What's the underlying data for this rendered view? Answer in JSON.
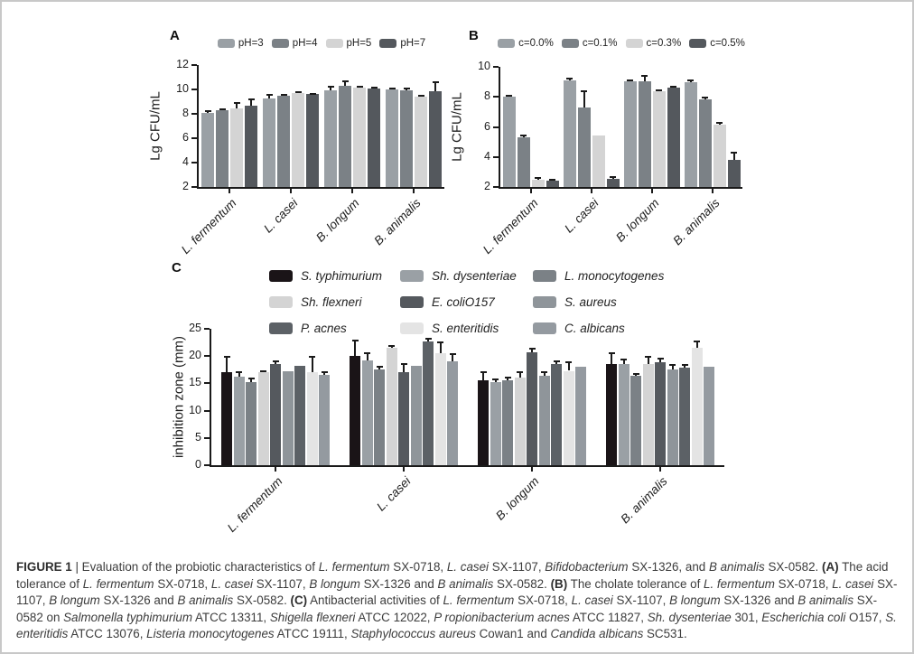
{
  "figure": {
    "caption_segments": [
      {
        "t": "FIGURE 1",
        "b": true
      },
      {
        "t": " | Evaluation of the probiotic characteristics of "
      },
      {
        "t": "L. fermentum",
        "i": true
      },
      {
        "t": " SX-0718, "
      },
      {
        "t": "L. casei",
        "i": true
      },
      {
        "t": " SX-1107, "
      },
      {
        "t": "Bifidobacterium",
        "i": true
      },
      {
        "t": " SX-1326, and "
      },
      {
        "t": "B animalis",
        "i": true
      },
      {
        "t": " SX-0582. "
      },
      {
        "t": "(A)",
        "b": true
      },
      {
        "t": " The acid tolerance of "
      },
      {
        "t": "L. fermentum",
        "i": true
      },
      {
        "t": " SX-0718, "
      },
      {
        "t": "L. casei",
        "i": true
      },
      {
        "t": " SX-1107, "
      },
      {
        "t": "B longum",
        "i": true
      },
      {
        "t": " SX-1326 and "
      },
      {
        "t": "B animalis",
        "i": true
      },
      {
        "t": " SX-0582. "
      },
      {
        "t": "(B)",
        "b": true
      },
      {
        "t": " The cholate tolerance of "
      },
      {
        "t": "L. fermentum",
        "i": true
      },
      {
        "t": " SX-0718, "
      },
      {
        "t": "L. casei",
        "i": true
      },
      {
        "t": " SX-1107, "
      },
      {
        "t": "B longum",
        "i": true
      },
      {
        "t": " SX-1326 and "
      },
      {
        "t": "B animalis",
        "i": true
      },
      {
        "t": " SX-0582. "
      },
      {
        "t": "(C)",
        "b": true
      },
      {
        "t": " Antibacterial activities of "
      },
      {
        "t": "L. fermentum",
        "i": true
      },
      {
        "t": " SX-0718, "
      },
      {
        "t": "L. casei",
        "i": true
      },
      {
        "t": " SX-1107, "
      },
      {
        "t": "B longum",
        "i": true
      },
      {
        "t": " SX-1326 and "
      },
      {
        "t": "B animalis",
        "i": true
      },
      {
        "t": " SX-0582 on "
      },
      {
        "t": "Salmonella typhimurium",
        "i": true
      },
      {
        "t": " ATCC 13311, "
      },
      {
        "t": "Shigella flexneri",
        "i": true
      },
      {
        "t": " ATCC 12022, "
      },
      {
        "t": "P ropionibacterium acnes",
        "i": true
      },
      {
        "t": " ATCC 11827, "
      },
      {
        "t": "Sh. dysenteriae",
        "i": true
      },
      {
        "t": " 301, "
      },
      {
        "t": "Escherichia coli",
        "i": true
      },
      {
        "t": " O157, "
      },
      {
        "t": "S. enteritidis",
        "i": true
      },
      {
        "t": " ATCC 13076, "
      },
      {
        "t": "Listeria monocytogenes",
        "i": true
      },
      {
        "t": " ATCC 19111, "
      },
      {
        "t": "Staphylococcus aureus",
        "i": true
      },
      {
        "t": " Cowan1 and "
      },
      {
        "t": "Candida albicans",
        "i": true
      },
      {
        "t": " SC531."
      }
    ]
  },
  "chart_data": [
    {
      "id": "A",
      "label": "A",
      "type": "bar",
      "title": "Acid tolerance",
      "xlabel": "",
      "ylabel": "Lg CFU/mL",
      "ylim": [
        2,
        12
      ],
      "yticks": [
        2,
        4,
        6,
        8,
        10,
        12
      ],
      "grid": false,
      "legend_position": "top",
      "legend_italic": false,
      "categories": [
        "L. fermentum",
        "L. casei",
        "B. longum",
        "B. animalis"
      ],
      "series": [
        {
          "name": "pH=3",
          "color": "#9aa0a5",
          "values": [
            8.1,
            9.25,
            9.9,
            10.0
          ],
          "errors": [
            0.1,
            0.3,
            0.35,
            0.1
          ]
        },
        {
          "name": "pH=4",
          "color": "#7b8186",
          "values": [
            8.3,
            9.45,
            10.3,
            9.9
          ],
          "errors": [
            0.1,
            0.1,
            0.35,
            0.15
          ]
        },
        {
          "name": "pH=5",
          "color": "#d4d4d4",
          "values": [
            8.45,
            9.7,
            10.15,
            9.4
          ],
          "errors": [
            0.45,
            0.05,
            0.1,
            0.1
          ]
        },
        {
          "name": "pH=7",
          "color": "#54585d",
          "values": [
            8.7,
            9.6,
            10.05,
            9.85
          ],
          "errors": [
            0.5,
            0.05,
            0.1,
            0.75
          ]
        }
      ]
    },
    {
      "id": "B",
      "label": "B",
      "type": "bar",
      "title": "Cholate tolerance",
      "xlabel": "",
      "ylabel": "Lg CFU/mL",
      "ylim": [
        2,
        10
      ],
      "yticks": [
        2,
        4,
        6,
        8,
        10
      ],
      "grid": false,
      "legend_position": "top",
      "legend_italic": false,
      "categories": [
        "L. fermentum",
        "L. casei",
        "B. longum",
        "B. animalis"
      ],
      "series": [
        {
          "name": "c=0.0%",
          "color": "#9aa0a5",
          "values": [
            8.0,
            9.1,
            9.05,
            9.0
          ],
          "errors": [
            0.08,
            0.1,
            0.05,
            0.08
          ]
        },
        {
          "name": "c=0.1%",
          "color": "#7b8186",
          "values": [
            5.3,
            7.3,
            9.05,
            7.85
          ],
          "errors": [
            0.12,
            1.05,
            0.35,
            0.08
          ]
        },
        {
          "name": "c=0.3%",
          "color": "#d4d4d4",
          "values": [
            2.5,
            5.4,
            8.35,
            6.15
          ],
          "errors": [
            0.1,
            0,
            0.08,
            0.1
          ]
        },
        {
          "name": "c=0.5%",
          "color": "#54585d",
          "values": [
            2.4,
            2.55,
            8.6,
            3.8
          ],
          "errors": [
            0.08,
            0.1,
            0.1,
            0.5
          ]
        }
      ]
    },
    {
      "id": "C",
      "label": "C",
      "type": "bar",
      "title": "Antibacterial activities",
      "xlabel": "",
      "ylabel": "inhibition zone (mm)",
      "ylim": [
        0,
        25
      ],
      "yticks": [
        0,
        5,
        10,
        15,
        20,
        25
      ],
      "grid": false,
      "legend_position": "top-grid-3col",
      "legend_italic": true,
      "categories": [
        "L. fermentum",
        "L. casei",
        "B. longum",
        "B. animalis"
      ],
      "series": [
        {
          "name": "S. typhimurium",
          "color": "#1a1417",
          "values": [
            17.0,
            20.0,
            15.6,
            18.6
          ],
          "errors": [
            2.8,
            2.8,
            1.5,
            1.9
          ]
        },
        {
          "name": "Sh. dysenteriae",
          "color": "#9aa0a5",
          "values": [
            16.3,
            19.2,
            15.3,
            18.5
          ],
          "errors": [
            0.7,
            1.3,
            0.5,
            0.8
          ]
        },
        {
          "name": "L. monocytogenes",
          "color": "#7b8186",
          "values": [
            15.3,
            17.6,
            15.6,
            16.4
          ],
          "errors": [
            0.6,
            0.5,
            0.5,
            0.4
          ]
        },
        {
          "name": "Sh. flexneri",
          "color": "#d4d4d4",
          "values": [
            17.0,
            21.5,
            16.1,
            18.5
          ],
          "errors": [
            0.2,
            0.4,
            1.0,
            1.3
          ]
        },
        {
          "name": "E. coliO157",
          "color": "#55595e",
          "values": [
            18.6,
            17.1,
            20.7,
            18.8
          ],
          "errors": [
            0.5,
            1.4,
            0.6,
            0.8
          ]
        },
        {
          "name": "S. aureus",
          "color": "#8f959a",
          "values": [
            17.2,
            18.2,
            16.4,
            17.6
          ],
          "errors": [
            0,
            0,
            0.7,
            0.8
          ]
        },
        {
          "name": "P. acnes",
          "color": "#5c6166",
          "values": [
            18.2,
            22.7,
            18.6,
            17.9
          ],
          "errors": [
            0,
            0.5,
            0.5,
            0.5
          ]
        },
        {
          "name": "S. enteritidis",
          "color": "#e4e4e4",
          "values": [
            17.0,
            20.5,
            17.3,
            21.5
          ],
          "errors": [
            2.8,
            2.0,
            1.5,
            1.2
          ]
        },
        {
          "name": "C. albicans",
          "color": "#949aa0",
          "values": [
            16.5,
            19.1,
            18.1,
            18.1
          ],
          "errors": [
            0.6,
            1.3,
            0,
            0
          ]
        }
      ]
    }
  ]
}
